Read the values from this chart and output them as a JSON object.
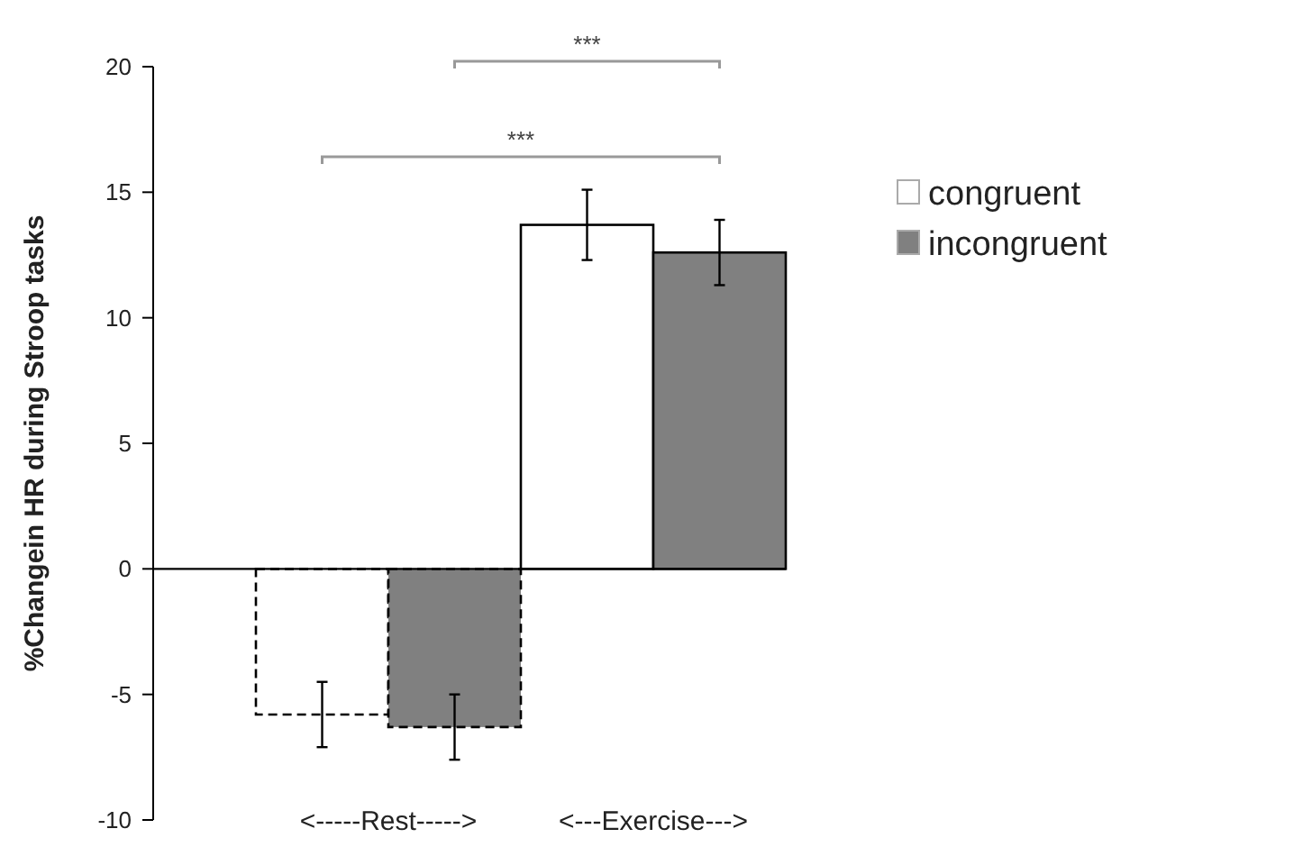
{
  "chart_data": {
    "type": "bar",
    "ylabel": "%Changein HR during Stroop tasks",
    "categories": [
      "<-----Rest----->",
      "<---Exercise--->"
    ],
    "series": [
      {
        "name": "congruent",
        "color": "#ffffff",
        "values": [
          -5.8,
          13.7
        ],
        "errors": [
          1.3,
          1.4
        ]
      },
      {
        "name": "incongruent",
        "color": "#808080",
        "values": [
          -6.3,
          12.6
        ],
        "errors": [
          1.3,
          1.3
        ]
      }
    ],
    "ylim": [
      -10,
      20
    ],
    "yticks": [
      -10,
      -5,
      0,
      5,
      10,
      15,
      20
    ],
    "legend": "right",
    "annotations": [
      "***",
      "***"
    ]
  }
}
